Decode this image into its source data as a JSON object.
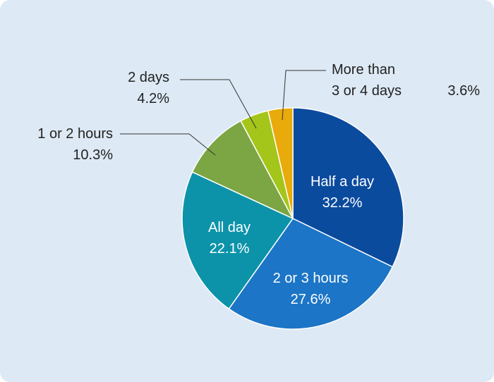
{
  "chart_data": {
    "type": "pie",
    "categories": [
      "Half a day",
      "2 or 3 hours",
      "All day",
      "1 or 2 hours",
      "2 days",
      "More than 3 or 4 days"
    ],
    "values": [
      32.2,
      27.6,
      22.1,
      10.3,
      4.2,
      3.6
    ],
    "value_labels": [
      "32.2%",
      "27.6%",
      "22.1%",
      "10.3%",
      "4.2%",
      "3.6%"
    ],
    "colors": [
      "#0b4b9e",
      "#1c75c6",
      "#0c93a9",
      "#7ca543",
      "#a4c519",
      "#e9aa0b"
    ]
  }
}
